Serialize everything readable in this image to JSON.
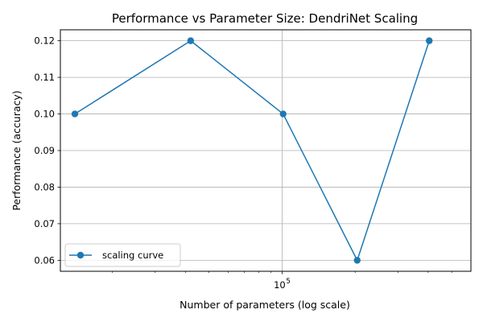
{
  "chart_data": {
    "type": "line",
    "title": "Performance vs Parameter Size: DendriNet Scaling",
    "xlabel": "Number of parameters (log scale)",
    "ylabel": "Performance (accuracy)",
    "xscale": "log",
    "xlim": [
      12200,
      600000
    ],
    "ylim": [
      0.057,
      0.123
    ],
    "grid": true,
    "legend_position": "lower-left",
    "x_tick_labels": [
      {
        "value": 100000,
        "base": "10",
        "exp": "5"
      }
    ],
    "y_ticks": [
      0.06,
      0.07,
      0.08,
      0.09,
      0.1,
      0.11,
      0.12
    ],
    "y_tick_labels": [
      "0.06",
      "0.07",
      "0.08",
      "0.09",
      "0.10",
      "0.11",
      "0.12"
    ],
    "series": [
      {
        "name": "scaling curve",
        "color": "#1f77b4",
        "marker": "circle",
        "x": [
          14000,
          42000,
          101000,
          204000,
          404000
        ],
        "y": [
          0.1,
          0.12,
          0.1,
          0.06,
          0.12
        ]
      }
    ]
  }
}
